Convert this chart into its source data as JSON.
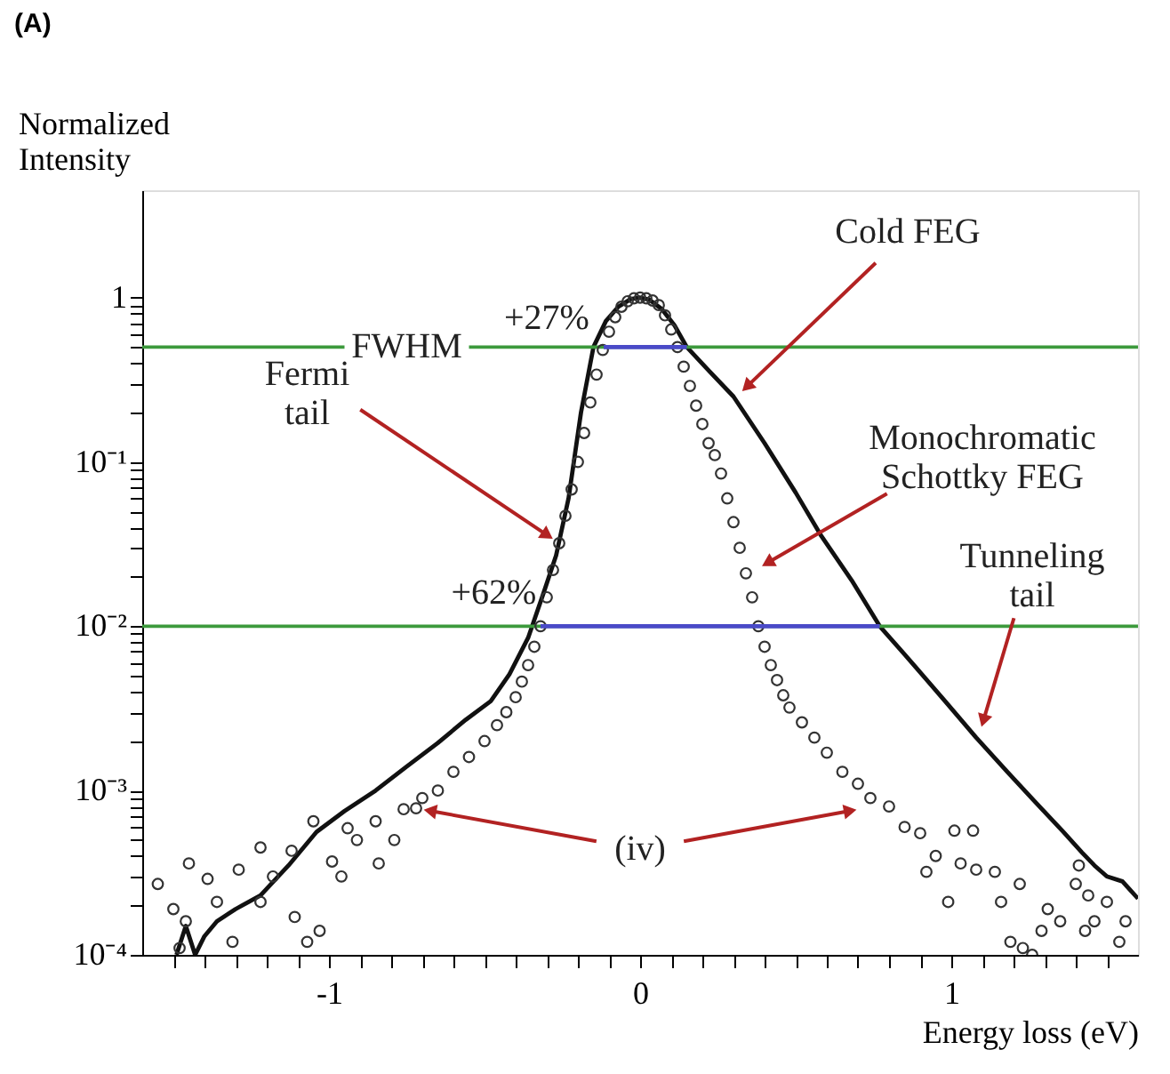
{
  "chart_data": {
    "type": "line",
    "title": "(A)",
    "xlabel": "Energy loss (eV)",
    "ylabel": "Normalized Intensity",
    "log": "y",
    "xlim": [
      -1.6,
      1.6
    ],
    "ylim": [
      0.0001,
      4.5
    ],
    "xticks": [
      {
        "value": -1.5,
        "label": null
      },
      {
        "value": -1.4,
        "label": null
      },
      {
        "value": -1.3,
        "label": null
      },
      {
        "value": -1.2,
        "label": null
      },
      {
        "value": -1.1,
        "label": null
      },
      -1,
      {
        "value": -0.9,
        "label": null
      },
      {
        "value": -0.8,
        "label": null
      },
      {
        "value": -0.7,
        "label": null
      },
      {
        "value": -0.6,
        "label": null
      },
      {
        "value": -0.5,
        "label": null
      },
      {
        "value": -0.4,
        "label": null
      },
      {
        "value": -0.3,
        "label": null
      },
      {
        "value": -0.2,
        "label": null
      },
      {
        "value": -0.1,
        "label": null
      },
      0,
      {
        "value": 0.1,
        "label": null
      },
      {
        "value": 0.2,
        "label": null
      },
      {
        "value": 0.3,
        "label": null
      },
      {
        "value": 0.4,
        "label": null
      },
      {
        "value": 0.5,
        "label": null
      },
      {
        "value": 0.6,
        "label": null
      },
      {
        "value": 0.7,
        "label": null
      },
      {
        "value": 0.8,
        "label": null
      },
      {
        "value": 0.9,
        "label": null
      },
      1,
      {
        "value": 1.1,
        "label": null
      },
      {
        "value": 1.2,
        "label": null
      },
      {
        "value": 1.3,
        "label": null
      },
      {
        "value": 1.4,
        "label": null
      },
      {
        "value": 1.5,
        "label": null
      }
    ],
    "yticks": [
      {
        "value": 0.0001,
        "label": "10⁻⁴"
      },
      {
        "value": 0.0002,
        "label": null
      },
      {
        "value": 0.0003,
        "label": null
      },
      {
        "value": 0.0004,
        "label": null
      },
      {
        "value": 0.0005,
        "label": null
      },
      {
        "value": 0.0006,
        "label": null
      },
      {
        "value": 0.0007,
        "label": null
      },
      {
        "value": 0.0008,
        "label": null
      },
      {
        "value": 0.0009,
        "label": null
      },
      {
        "value": 0.001,
        "label": "10⁻³"
      },
      {
        "value": 0.002,
        "label": null
      },
      {
        "value": 0.003,
        "label": null
      },
      {
        "value": 0.004,
        "label": null
      },
      {
        "value": 0.005,
        "label": null
      },
      {
        "value": 0.006,
        "label": null
      },
      {
        "value": 0.007,
        "label": null
      },
      {
        "value": 0.008,
        "label": null
      },
      {
        "value": 0.009,
        "label": null
      },
      {
        "value": 0.01,
        "label": "10⁻²"
      },
      {
        "value": 0.02,
        "label": null
      },
      {
        "value": 0.03,
        "label": null
      },
      {
        "value": 0.04,
        "label": null
      },
      {
        "value": 0.05,
        "label": null
      },
      {
        "value": 0.06,
        "label": null
      },
      {
        "value": 0.07,
        "label": null
      },
      {
        "value": 0.08,
        "label": null
      },
      {
        "value": 0.09,
        "label": null
      },
      {
        "value": 0.1,
        "label": "10⁻¹"
      },
      {
        "value": 0.2,
        "label": null
      },
      {
        "value": 0.3,
        "label": null
      },
      {
        "value": 0.4,
        "label": null
      },
      {
        "value": 0.5,
        "label": null
      },
      {
        "value": 0.6,
        "label": null
      },
      {
        "value": 0.7,
        "label": null
      },
      {
        "value": 0.8,
        "label": null
      },
      {
        "value": 0.9,
        "label": null
      },
      {
        "value": 1,
        "label": "1"
      }
    ],
    "grid": false,
    "series": [
      {
        "color": "#111111",
        "x": [
          -1.49,
          -1.46,
          -1.43,
          -1.4,
          -1.36,
          -1.3,
          -1.22,
          -1.13,
          -1.04,
          -0.95,
          -0.85,
          -0.75,
          -0.65,
          -0.56,
          -0.48,
          -0.42,
          -0.36,
          -0.31,
          -0.27,
          -0.23,
          -0.19,
          -0.15,
          -0.11,
          -0.07,
          -0.03,
          0,
          0.03,
          0.07,
          0.11,
          0.15,
          0.22,
          0.3,
          0.4,
          0.5,
          0.58,
          0.68,
          0.77,
          0.88,
          0.98,
          1.08,
          1.18,
          1.27,
          1.36,
          1.42,
          1.46,
          1.5,
          1.55,
          1.6
        ],
        "values": [
          0.0001,
          0.00015,
          0.0001,
          0.00013,
          0.00016,
          0.00019,
          0.00023,
          0.00035,
          0.00056,
          0.00075,
          0.001,
          0.0014,
          0.00195,
          0.0027,
          0.0035,
          0.0051,
          0.0085,
          0.016,
          0.027,
          0.06,
          0.2,
          0.5,
          0.72,
          0.88,
          0.98,
          1,
          0.97,
          0.85,
          0.68,
          0.5,
          0.36,
          0.25,
          0.13,
          0.065,
          0.036,
          0.019,
          0.01,
          0.0058,
          0.0035,
          0.0021,
          0.0013,
          0.00085,
          0.00056,
          0.00042,
          0.00035,
          0.0003,
          0.00028,
          0.00022
        ]
      },
      {
        "type": "scatter",
        "marker": "circle",
        "color": "#333333",
        "x": [
          -1.55,
          -1.5,
          -1.48,
          -1.45,
          -1.46,
          -1.39,
          -1.36,
          -1.31,
          -1.29,
          -1.22,
          -1.22,
          -1.18,
          -1.12,
          -1.11,
          -1.07,
          -1.05,
          -1.03,
          -0.99,
          -0.96,
          -0.94,
          -0.91,
          -0.85,
          -0.84,
          -0.79,
          -0.76,
          -0.72,
          -0.7,
          -0.65,
          -0.6,
          -0.55,
          -0.5,
          -0.46,
          -0.43,
          -0.4,
          -0.38,
          -0.36,
          -0.34,
          -0.32,
          -0.3,
          -0.28,
          -0.26,
          -0.24,
          -0.22,
          -0.2,
          -0.18,
          -0.16,
          -0.14,
          -0.12,
          -0.1,
          -0.08,
          -0.06,
          -0.04,
          -0.02,
          0,
          0.02,
          0.04,
          0.06,
          0.08,
          0.1,
          0.12,
          0.14,
          0.16,
          0.18,
          0.2,
          0.22,
          0.24,
          0.26,
          0.28,
          0.3,
          0.32,
          0.34,
          0.36,
          0.38,
          0.4,
          0.42,
          0.44,
          0.46,
          0.48,
          0.52,
          0.56,
          0.6,
          0.65,
          0.7,
          0.74,
          0.8,
          0.85,
          0.9,
          0.92,
          0.95,
          0.99,
          1.01,
          1.07,
          1.08,
          1.03,
          1.14,
          1.16,
          1.22,
          1.19,
          1.23,
          1.26,
          1.29,
          1.31,
          1.35,
          1.4,
          1.41,
          1.43,
          1.46,
          1.5,
          1.54,
          1.56,
          1.44
        ],
        "values": [
          0.00027,
          0.00019,
          0.00011,
          0.00036,
          0.00016,
          0.00029,
          0.00021,
          0.00012,
          0.00033,
          0.00045,
          0.00021,
          0.0003,
          0.00043,
          0.00017,
          0.00012,
          0.00065,
          0.00014,
          0.00037,
          0.0003,
          0.00059,
          0.0005,
          0.00065,
          0.00036,
          0.0005,
          0.00077,
          0.00078,
          0.0009,
          0.001,
          0.0013,
          0.0016,
          0.002,
          0.0025,
          0.003,
          0.0037,
          0.0046,
          0.0058,
          0.0075,
          0.01,
          0.015,
          0.022,
          0.032,
          0.047,
          0.068,
          0.1,
          0.15,
          0.23,
          0.34,
          0.48,
          0.62,
          0.76,
          0.88,
          0.95,
          0.99,
          1,
          0.99,
          0.96,
          0.9,
          0.78,
          0.64,
          0.5,
          0.38,
          0.29,
          0.22,
          0.17,
          0.13,
          0.11,
          0.085,
          0.06,
          0.043,
          0.03,
          0.021,
          0.015,
          0.01,
          0.0075,
          0.0058,
          0.0047,
          0.0038,
          0.0032,
          0.0026,
          0.0021,
          0.0017,
          0.0013,
          0.0011,
          0.0009,
          0.0008,
          0.0006,
          0.00055,
          0.00032,
          0.0004,
          0.00021,
          0.00057,
          0.00057,
          0.00033,
          0.00036,
          0.00032,
          0.00021,
          0.00027,
          0.00012,
          0.00011,
          0.0001,
          0.00014,
          0.00019,
          0.00016,
          0.00027,
          0.00035,
          0.00014,
          0.00016,
          0.00021,
          0.00012,
          0.00016,
          0.00023
        ]
      },
      {
        "type": "line",
        "color": "#4a4ac8",
        "x": [
          -0.117,
          0.15
        ],
        "values": [
          0.5,
          0.5
        ]
      },
      {
        "type": "line",
        "color": "#4a4ac8",
        "x": [
          -0.32,
          0.77
        ],
        "values": [
          0.01,
          0.01
        ]
      }
    ],
    "ref_lines": [
      {
        "axis": "y",
        "value": 0.5,
        "label": "FWHM",
        "color": "#3c9a3c"
      },
      {
        "axis": "y",
        "value": 0.01,
        "color": "#3c9a3c"
      }
    ],
    "annotations": [
      {
        "text": "Cold FEG",
        "x": 0.31,
        "y": 0.25
      },
      {
        "text": "Fermi\ntail",
        "x": -0.26,
        "y": 0.032
      },
      {
        "text": "Monochromatic\nSchottky FEG",
        "x": 0.37,
        "y": 0.022
      },
      {
        "text": "Tunneling\ntail",
        "x": 1.09,
        "y": 0.0022
      },
      {
        "text": "(iv)",
        "x": -0.72,
        "y": 0.00078
      },
      "+27%",
      "+62%"
    ]
  }
}
